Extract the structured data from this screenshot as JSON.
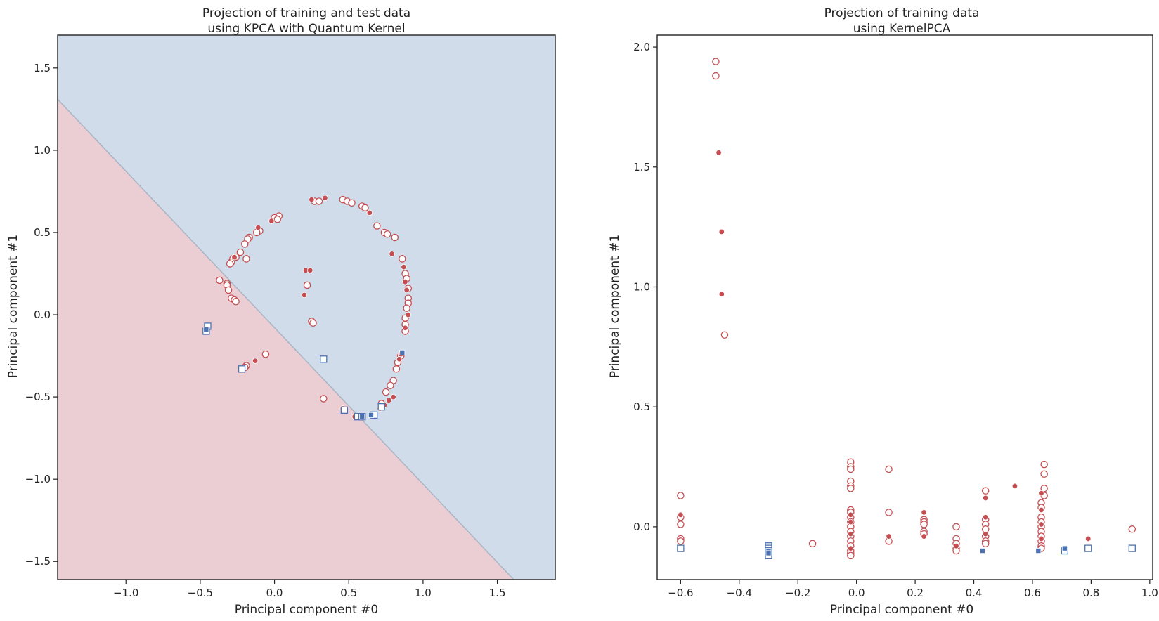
{
  "chart_data": [
    {
      "type": "scatter",
      "title_line1": "Projection of training and test data",
      "title_line2": "using KPCA with Quantum Kernel",
      "xlabel": "Principal component #0",
      "ylabel": "Principal component #1",
      "xlim": [
        -1.46,
        1.89
      ],
      "ylim": [
        -1.61,
        1.7
      ],
      "xticks": [
        -1.0,
        -0.5,
        0.0,
        0.5,
        1.0,
        1.5
      ],
      "xtick_labels": [
        "−1.0",
        "−0.5",
        "0.0",
        "0.5",
        "1.0",
        "1.5"
      ],
      "yticks": [
        -1.5,
        -1.0,
        -0.5,
        0.0,
        0.5,
        1.0,
        1.5
      ],
      "ytick_labels": [
        "−1.5",
        "−1.0",
        "−0.5",
        "0.0",
        "0.5",
        "1.0",
        "1.5"
      ],
      "grid": false,
      "background_regions": {
        "description": "decision regions split by a diagonal boundary",
        "boundary_line": [
          [
            -1.46,
            1.31
          ],
          [
            1.61,
            -1.61
          ]
        ],
        "upper_color": "#d0dcea",
        "lower_color": "#eaced3",
        "boundary_color": "#a9b4c4"
      },
      "series": [
        {
          "marker": "circle-open",
          "color": "#c44e52",
          "x": [
            0.27,
            0.3,
            0.46,
            0.49,
            0.52,
            0.59,
            0.61,
            0.69,
            0.74,
            0.76,
            0.81,
            0.86,
            0.86,
            0.88,
            0.89,
            0.9,
            0.9,
            0.9,
            0.89,
            0.88,
            0.88,
            0.88,
            0.85,
            0.83,
            0.82,
            0.8,
            0.78,
            0.75,
            0.72,
            0.03,
            0.0,
            0.02,
            -0.1,
            -0.12,
            -0.17,
            -0.18,
            -0.2,
            -0.23,
            -0.26,
            -0.28,
            -0.29,
            -0.3,
            -0.19,
            0.22,
            0.25,
            0.26,
            -0.37,
            -0.32,
            -0.32,
            -0.31,
            -0.29,
            -0.27,
            -0.26,
            -0.19,
            -0.2,
            -0.06,
            0.33,
            0.59
          ],
          "y": [
            0.69,
            0.69,
            0.7,
            0.69,
            0.68,
            0.66,
            0.65,
            0.54,
            0.5,
            0.49,
            0.47,
            0.34,
            0.34,
            0.25,
            0.22,
            0.16,
            0.1,
            0.07,
            0.04,
            -0.02,
            -0.06,
            -0.1,
            -0.25,
            -0.29,
            -0.33,
            -0.4,
            -0.43,
            -0.47,
            -0.54,
            0.6,
            0.59,
            0.58,
            0.51,
            0.5,
            0.47,
            0.46,
            0.43,
            0.38,
            0.35,
            0.34,
            0.32,
            0.31,
            0.34,
            0.18,
            -0.04,
            -0.05,
            0.21,
            0.19,
            0.18,
            0.15,
            0.1,
            0.09,
            0.08,
            -0.31,
            -0.32,
            -0.24,
            -0.51,
            -0.62
          ]
        },
        {
          "marker": "circle-filled",
          "color": "#c44e52",
          "x": [
            0.25,
            0.34,
            0.64,
            0.79,
            0.87,
            0.88,
            0.89,
            0.9,
            0.88,
            0.85,
            0.84,
            0.8,
            0.77,
            0.74,
            0.71,
            -0.02,
            -0.11,
            -0.27,
            0.21,
            0.24,
            0.2,
            -0.13,
            0.46,
            0.54
          ],
          "y": [
            0.7,
            0.71,
            0.62,
            0.37,
            0.29,
            0.2,
            0.15,
            0.0,
            -0.08,
            -0.24,
            -0.27,
            -0.5,
            -0.52,
            -0.55,
            -0.57,
            0.57,
            0.53,
            0.35,
            0.27,
            0.27,
            0.12,
            -0.28,
            -0.57,
            -0.62
          ]
        },
        {
          "marker": "square-open",
          "color": "#4c72b0",
          "x": [
            -0.45,
            -0.46,
            -0.22,
            0.33,
            0.47,
            0.56,
            0.59,
            0.67,
            0.72
          ],
          "y": [
            -0.07,
            -0.1,
            -0.33,
            -0.27,
            -0.58,
            -0.62,
            -0.62,
            -0.61,
            -0.56
          ]
        },
        {
          "marker": "square-filled",
          "color": "#4c72b0",
          "x": [
            -0.46,
            0.59,
            0.65,
            0.86
          ],
          "y": [
            -0.09,
            -0.62,
            -0.61,
            -0.23
          ]
        }
      ]
    },
    {
      "type": "scatter",
      "title_line1": "Projection of training data",
      "title_line2": "using KernelPCA",
      "xlabel": "Principal component #0",
      "ylabel": "Principal component #1",
      "xlim": [
        -0.68,
        1.01
      ],
      "ylim": [
        -0.22,
        2.05
      ],
      "xticks": [
        -0.6,
        -0.4,
        -0.2,
        0.0,
        0.2,
        0.4,
        0.6,
        0.8,
        1.0
      ],
      "xtick_labels": [
        "−0.6",
        "−0.4",
        "−0.2",
        "0.0",
        "0.2",
        "0.4",
        "0.6",
        "0.8",
        "1.0"
      ],
      "yticks": [
        0.0,
        0.5,
        1.0,
        1.5,
        2.0
      ],
      "ytick_labels": [
        "0.0",
        "0.5",
        "1.0",
        "1.5",
        "2.0"
      ],
      "grid": false,
      "series": [
        {
          "marker": "circle-open",
          "color": "#c44e52",
          "x": [
            -0.48,
            -0.48,
            -0.45,
            -0.6,
            -0.6,
            -0.6,
            -0.6,
            -0.6,
            -0.15,
            -0.02,
            -0.02,
            -0.02,
            -0.02,
            -0.02,
            -0.02,
            -0.02,
            -0.02,
            -0.02,
            -0.02,
            -0.02,
            -0.02,
            -0.02,
            -0.02,
            -0.02,
            -0.02,
            -0.02,
            -0.02,
            0.11,
            0.11,
            0.11,
            0.23,
            0.23,
            0.23,
            0.23,
            0.23,
            0.34,
            0.34,
            0.34,
            0.34,
            0.34,
            0.44,
            0.44,
            0.44,
            0.44,
            0.44,
            0.44,
            0.44,
            0.64,
            0.64,
            0.64,
            0.64,
            0.63,
            0.63,
            0.63,
            0.63,
            0.63,
            0.63,
            0.63,
            0.63,
            0.63,
            0.63,
            0.94
          ],
          "y": [
            1.94,
            1.88,
            0.8,
            0.13,
            0.04,
            0.01,
            -0.05,
            -0.06,
            -0.07,
            0.27,
            0.25,
            0.24,
            0.19,
            0.17,
            0.16,
            0.07,
            0.06,
            0.04,
            0.02,
            0.0,
            -0.02,
            -0.04,
            -0.06,
            -0.08,
            -0.1,
            -0.11,
            -0.12,
            0.24,
            0.06,
            -0.06,
            0.03,
            0.02,
            0.01,
            -0.02,
            -0.03,
            0.0,
            -0.05,
            -0.07,
            -0.09,
            -0.1,
            0.15,
            0.03,
            0.01,
            -0.01,
            -0.04,
            -0.06,
            -0.07,
            0.26,
            0.22,
            0.16,
            0.13,
            0.1,
            0.08,
            0.04,
            0.02,
            0.0,
            -0.02,
            -0.04,
            -0.06,
            -0.08,
            -0.09,
            -0.01
          ]
        },
        {
          "marker": "circle-filled",
          "color": "#c44e52",
          "x": [
            -0.47,
            -0.46,
            -0.46,
            -0.6,
            -0.6,
            -0.02,
            -0.02,
            -0.02,
            -0.02,
            0.11,
            0.23,
            0.23,
            0.34,
            0.44,
            0.44,
            0.44,
            0.54,
            0.63,
            0.63,
            0.63,
            0.63,
            0.79,
            0.79
          ],
          "y": [
            1.56,
            1.23,
            0.97,
            0.05,
            0.05,
            0.05,
            0.02,
            -0.03,
            -0.09,
            -0.04,
            0.06,
            -0.04,
            -0.08,
            0.12,
            0.04,
            -0.03,
            0.17,
            0.14,
            0.07,
            0.01,
            -0.05,
            -0.05,
            -0.09
          ]
        },
        {
          "marker": "square-open",
          "color": "#4c72b0",
          "x": [
            -0.6,
            -0.3,
            -0.3,
            -0.3,
            -0.3,
            0.71,
            0.79,
            0.94
          ],
          "y": [
            -0.09,
            -0.08,
            -0.09,
            -0.1,
            -0.12,
            -0.1,
            -0.09,
            -0.09
          ]
        },
        {
          "marker": "square-filled",
          "color": "#4c72b0",
          "x": [
            -0.3,
            -0.3,
            0.43,
            0.62,
            0.71
          ],
          "y": [
            -0.1,
            -0.11,
            -0.1,
            -0.1,
            -0.09
          ]
        }
      ]
    }
  ]
}
